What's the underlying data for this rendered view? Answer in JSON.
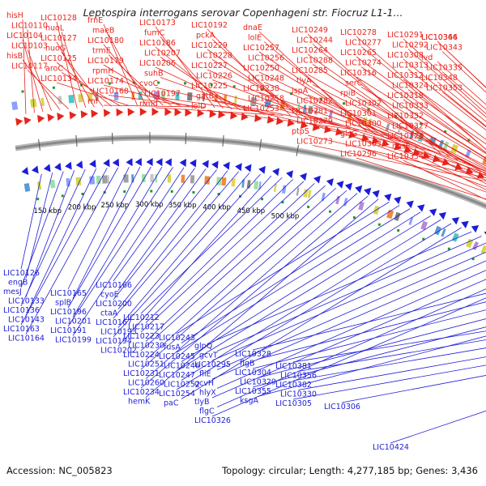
{
  "title": "Leptospira interrogans serovar Copenhageni str. Fiocruz L1-1...",
  "footer": {
    "accession": "Accession: NC_005823",
    "summary": "Topology: circular; Length: 4,277,185 bp; Genes: 3,436"
  },
  "colors": {
    "forward": "#e8231b",
    "reverse": "#1d1dd8",
    "backbone": "#8a8a8a",
    "marker": "#1f9a2a"
  },
  "tick_labels": [
    "150 kbp",
    "200 kbp",
    "250 kbp",
    "300 kbp",
    "350 kbp",
    "400 kbp",
    "450 kbp",
    "500 kbp"
  ],
  "forward_labels": [
    "hisH",
    "LIC10110",
    "LIC10104",
    "LIC10103",
    "hisB",
    "LIC10117",
    "LIC10128",
    "nuoL",
    "LIC10127",
    "nuoG",
    "LIC10125",
    "aroC",
    "LIC10134",
    "frnE",
    "maeB",
    "LIC10180",
    "trmE",
    "LIC10179",
    "rpmH",
    "LIC10174",
    "LIC10168",
    "rnf",
    "LIC10173",
    "fumC",
    "LIC10186",
    "LIC10207",
    "LIC10206",
    "suhB",
    "cvoC",
    "LIC10197",
    "rrmd",
    "LIC10192",
    "pckA",
    "LIC10229",
    "LIC10228",
    "LIC10227",
    "LIC10226",
    "LIC10225",
    "gatB",
    "lolD",
    "dnaE",
    "lolE",
    "LIC10257",
    "LIC10256",
    "LIC10250",
    "LIC10248",
    "LIC10238",
    "LIC10258",
    "LIC10253",
    "LIC10249",
    "LIC10244",
    "LIC10264",
    "LIC10288",
    "LIC10285",
    "tlyA",
    "ispA",
    "LIC10282",
    "LIC10281",
    "LIC10279",
    "ptpS",
    "LIC10273",
    "LIC10278",
    "LIC10277",
    "LIC10265",
    "LIC10274",
    "LIC10316",
    "serC",
    "rpiB",
    "LIC10302",
    "LIC10301",
    "LIC10300",
    "glcG",
    "LIC10303",
    "LIC10296",
    "LIC10291",
    "LIC10292",
    "LIC10308",
    "LIC10313",
    "LIC10312",
    "LIC10324",
    "LIC10318",
    "LIC10333",
    "LIC10332",
    "LIC10327",
    "LIC10323",
    "nosF",
    "LIC10334",
    "LIC10346",
    "LIC10343",
    "ivd",
    "LIC10335",
    "LIC10348",
    "LIC10353",
    "LIC10364"
  ],
  "reverse_labels": [
    "LIC10126",
    "engB",
    "mesJ",
    "LIC10133",
    "LIC10136",
    "LIC10143",
    "LIC10163",
    "LIC10164",
    "LIC10165",
    "splB",
    "LIC10196",
    "LIC10201",
    "LIC10191",
    "LIC10199",
    "LIC10166",
    "cyoE",
    "LIC10200",
    "ctaA",
    "LIC10167",
    "LIC10193",
    "LIC10194",
    "LIC10202",
    "LIC10212",
    "LIC10217",
    "LIC10223",
    "LIC10230",
    "LIC10224",
    "LIC10251",
    "LIC10231",
    "LIC10260",
    "LIC10234",
    "hemK",
    "LIC10243",
    "fusA",
    "LIC10245",
    "LIC10246",
    "LIC10247",
    "LIC10252",
    "LIC10254",
    "paC",
    "glpQ",
    "gcvT",
    "LIC10295",
    "fliE",
    "gcvH",
    "hlyX",
    "tlyB",
    "flgC",
    "LIC10326",
    "LIC10328",
    "flgB",
    "LIC10304",
    "LIC10329",
    "LIC10355",
    "ksgA",
    "LIC10381",
    "LIC10356",
    "LIC10382",
    "LIC10330",
    "LIC10305",
    "LIC10306",
    "LIC10424"
  ]
}
